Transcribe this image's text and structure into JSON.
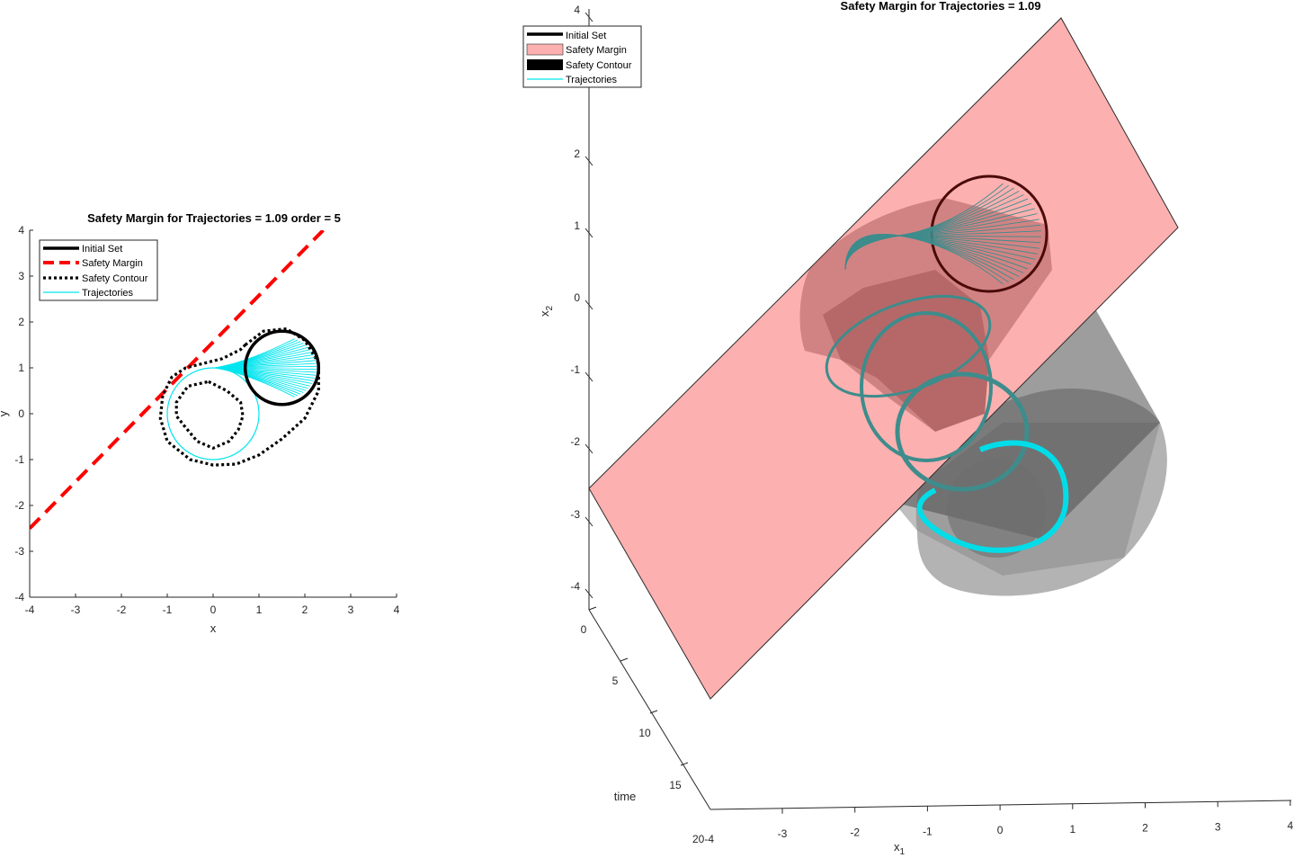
{
  "chart_data": [
    {
      "type": "line",
      "title": "Safety Margin for Trajectories = 1.09 order = 5",
      "xlabel": "x",
      "ylabel": "y",
      "xlim": [
        -4,
        4
      ],
      "ylim": [
        -4,
        4
      ],
      "xticks": [
        "-4",
        "-3",
        "-2",
        "-1",
        "0",
        "1",
        "2",
        "3",
        "4"
      ],
      "yticks": [
        "4",
        "3",
        "2",
        "1",
        "0",
        "-1",
        "-2",
        "-3",
        "-4"
      ],
      "legend_position": "top-left",
      "legend": [
        "Initial Set",
        "Safety Margin",
        "Safety Contour",
        "Trajectories"
      ],
      "colors": {
        "initial_set": "#000000",
        "safety_margin": "#ff0000",
        "safety_contour": "#000000",
        "trajectories": "#00e5ee"
      },
      "initial_set": {
        "center": [
          1.5,
          1.0
        ],
        "radius": 0.8
      },
      "safety_margin_line": {
        "x": [
          -4,
          2.4
        ],
        "y": [
          -2.5,
          4.0
        ]
      },
      "trajectory_circle": {
        "center": [
          0,
          0
        ],
        "radius": 1.0
      },
      "safety_contour_outer": {
        "x": [
          0.7,
          1.1,
          1.6,
          2.0,
          2.3,
          2.3,
          2.0,
          1.5,
          1.0,
          0.5,
          0.0,
          -0.5,
          -1.0,
          -1.15,
          -1.1,
          -0.9,
          -0.6,
          -0.2,
          0.2,
          0.6,
          0.7
        ],
        "y": [
          1.5,
          1.8,
          1.85,
          1.6,
          1.1,
          0.5,
          -0.1,
          -0.55,
          -0.9,
          -1.1,
          -1.12,
          -1.0,
          -0.6,
          -0.1,
          0.4,
          0.8,
          1.0,
          1.1,
          1.2,
          1.4,
          1.5
        ]
      },
      "safety_contour_inner": {
        "x": [
          -0.1,
          0.3,
          0.6,
          0.65,
          0.55,
          0.35,
          0.0,
          -0.35,
          -0.6,
          -0.8,
          -0.8,
          -0.55,
          -0.1
        ],
        "y": [
          0.7,
          0.5,
          0.25,
          -0.05,
          -0.35,
          -0.6,
          -0.75,
          -0.6,
          -0.3,
          -0.05,
          0.25,
          0.6,
          0.7
        ]
      }
    },
    {
      "type": "surface-3d",
      "title": "Safety Margin for Trajectories = 1.09",
      "xlabel": "x",
      "xlabel_sub": "1",
      "ylabel": "x",
      "ylabel_sub": "2",
      "zlabel": "time",
      "xlim": [
        -4,
        4
      ],
      "ylim": [
        -4,
        4
      ],
      "zlim": [
        0,
        20
      ],
      "xticks": [
        "-3",
        "-2",
        "-1",
        "0",
        "1",
        "2",
        "3",
        "4"
      ],
      "yticks": [
        "4",
        "2",
        "1",
        "0",
        "-1",
        "-2",
        "-3",
        "-4"
      ],
      "zticks": [
        "0",
        "5",
        "10",
        "15"
      ],
      "corner_tick": "20-4",
      "legend_position": "top-left",
      "legend": [
        "Initial Set",
        "Safety Margin",
        "Safety Contour",
        "Trajectories"
      ],
      "colors": {
        "initial_set": "#000000",
        "safety_margin": "#fdb0b0",
        "safety_contour": "#000000",
        "trajectories": "#00e5ee"
      }
    }
  ]
}
